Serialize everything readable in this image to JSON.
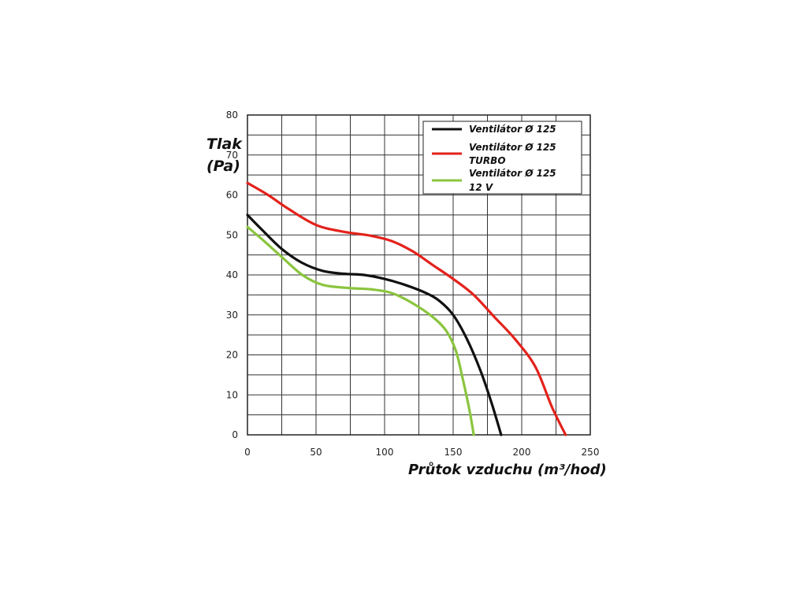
{
  "chart_data": {
    "type": "line",
    "ylabel": [
      "Tlak",
      "(Pa)"
    ],
    "xlabel": "Průtok vzduchu (m³/hod)",
    "xlim": [
      0,
      250
    ],
    "ylim": [
      0,
      80
    ],
    "xticks": [
      0,
      50,
      100,
      150,
      200,
      250
    ],
    "yticks": [
      0,
      10,
      20,
      30,
      40,
      50,
      60,
      70,
      80
    ],
    "grid": true,
    "legend_position": "top-right",
    "series": [
      {
        "name": [
          "Ventilátor Ø 125"
        ],
        "color": "#111111",
        "points": [
          [
            0,
            55
          ],
          [
            10,
            51.5
          ],
          [
            25,
            46.5
          ],
          [
            40,
            43
          ],
          [
            55,
            41
          ],
          [
            70,
            40.3
          ],
          [
            85,
            40
          ],
          [
            100,
            39
          ],
          [
            115,
            37.5
          ],
          [
            130,
            35.5
          ],
          [
            140,
            33.5
          ],
          [
            150,
            30
          ],
          [
            160,
            24
          ],
          [
            170,
            16
          ],
          [
            178,
            8
          ],
          [
            185,
            0
          ]
        ]
      },
      {
        "name": [
          "Ventilátor Ø 125",
          "TURBO"
        ],
        "color": "#e3221b",
        "points": [
          [
            0,
            63
          ],
          [
            15,
            60
          ],
          [
            30,
            56.5
          ],
          [
            50,
            52.5
          ],
          [
            70,
            50.8
          ],
          [
            90,
            49.8
          ],
          [
            105,
            48.5
          ],
          [
            120,
            46
          ],
          [
            135,
            42.5
          ],
          [
            150,
            39
          ],
          [
            165,
            35
          ],
          [
            180,
            29.5
          ],
          [
            195,
            24
          ],
          [
            210,
            17
          ],
          [
            222,
            7
          ],
          [
            232,
            0
          ]
        ]
      },
      {
        "name": [
          "Ventilátor Ø 125",
          "12 V"
        ],
        "color": "#8bc53f",
        "points": [
          [
            0,
            52
          ],
          [
            12,
            48.5
          ],
          [
            25,
            44.5
          ],
          [
            40,
            40
          ],
          [
            55,
            37.5
          ],
          [
            75,
            36.7
          ],
          [
            90,
            36.4
          ],
          [
            105,
            35.5
          ],
          [
            120,
            33
          ],
          [
            135,
            29.5
          ],
          [
            145,
            26
          ],
          [
            152,
            21
          ],
          [
            157,
            14
          ],
          [
            162,
            6
          ],
          [
            165,
            0
          ]
        ]
      }
    ]
  }
}
